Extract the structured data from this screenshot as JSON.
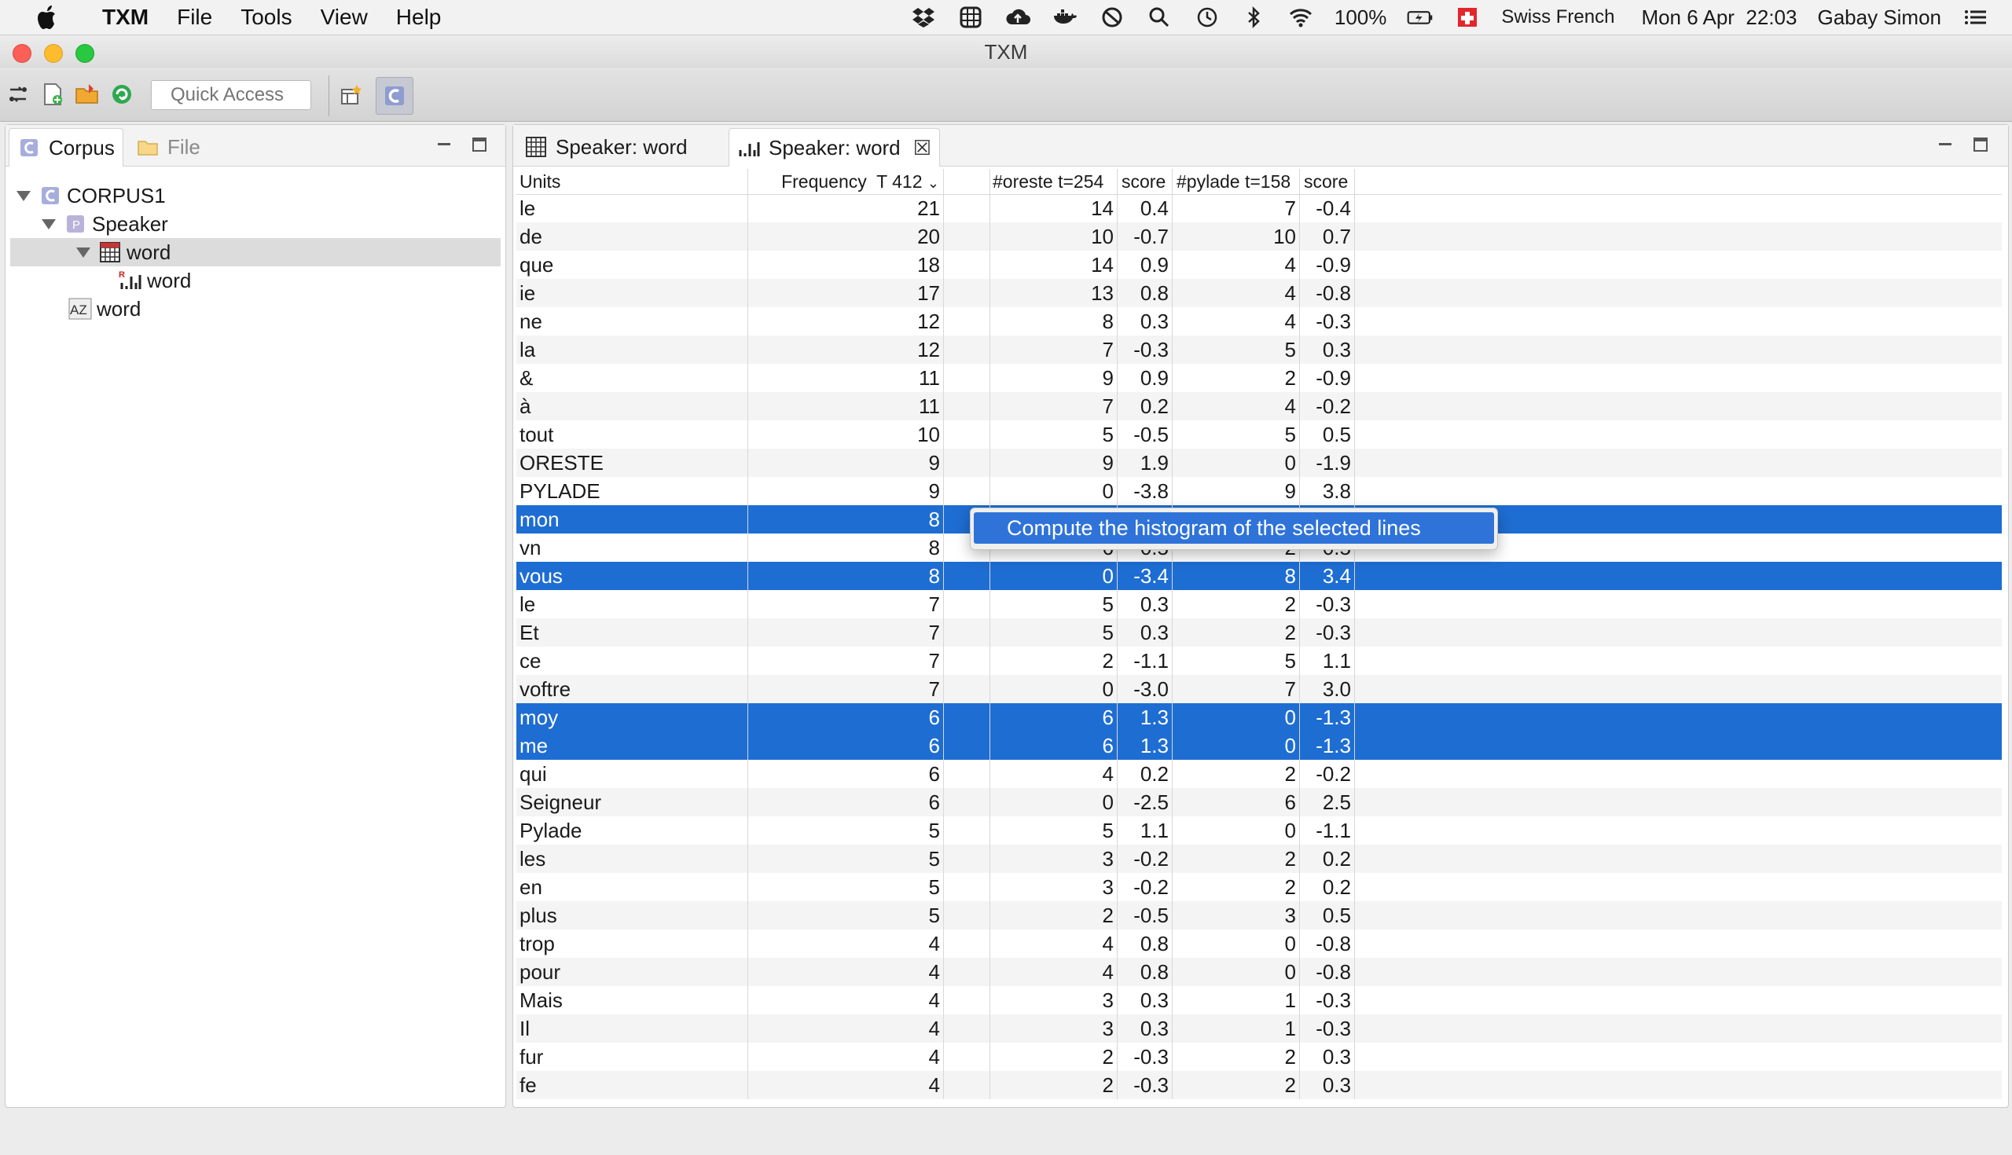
{
  "menubar": {
    "app": "TXM",
    "items": [
      "File",
      "Tools",
      "View",
      "Help"
    ],
    "status": {
      "battery": "100%",
      "input_source": "Swiss French",
      "datetime": "Mon 6 Apr  22:03",
      "user": "Gabay Simon"
    }
  },
  "window": {
    "title": "TXM"
  },
  "toolbar": {
    "quick_access_placeholder": "Quick Access"
  },
  "left_panel": {
    "tabs": [
      "Corpus",
      "File"
    ],
    "tree": {
      "corpus": "CORPUS1",
      "partition": "Speaker",
      "lexical_table": "word",
      "specificities": "word",
      "lexicon": "word"
    }
  },
  "editor": {
    "tabs": [
      "Speaker: word",
      "Speaker: word"
    ],
    "columns": {
      "units": "Units",
      "frequency": "Frequency  T 412",
      "col3": "#oreste t=254",
      "score1": "score",
      "col5": "#pylade t=158",
      "score2": "score"
    },
    "rows": [
      {
        "u": "le",
        "f": "21",
        "o": "14",
        "s1": "0.4",
        "p": "7",
        "s2": "-0.4"
      },
      {
        "u": "de",
        "f": "20",
        "o": "10",
        "s1": "-0.7",
        "p": "10",
        "s2": "0.7"
      },
      {
        "u": "que",
        "f": "18",
        "o": "14",
        "s1": "0.9",
        "p": "4",
        "s2": "-0.9"
      },
      {
        "u": "ie",
        "f": "17",
        "o": "13",
        "s1": "0.8",
        "p": "4",
        "s2": "-0.8"
      },
      {
        "u": "ne",
        "f": "12",
        "o": "8",
        "s1": "0.3",
        "p": "4",
        "s2": "-0.3"
      },
      {
        "u": "la",
        "f": "12",
        "o": "7",
        "s1": "-0.3",
        "p": "5",
        "s2": "0.3"
      },
      {
        "u": "&",
        "f": "11",
        "o": "9",
        "s1": "0.9",
        "p": "2",
        "s2": "-0.9"
      },
      {
        "u": "à",
        "f": "11",
        "o": "7",
        "s1": "0.2",
        "p": "4",
        "s2": "-0.2"
      },
      {
        "u": "tout",
        "f": "10",
        "o": "5",
        "s1": "-0.5",
        "p": "5",
        "s2": "0.5"
      },
      {
        "u": "ORESTE",
        "f": "9",
        "o": "9",
        "s1": "1.9",
        "p": "0",
        "s2": "-1.9"
      },
      {
        "u": "PYLADE",
        "f": "9",
        "o": "0",
        "s1": "-3.8",
        "p": "9",
        "s2": "3.8"
      },
      {
        "u": "mon",
        "f": "8",
        "o": "",
        "s1": "",
        "p": "",
        "s2": "",
        "sel": true
      },
      {
        "u": "vn",
        "f": "8",
        "o": "6",
        "s1": "0.5",
        "p": "2",
        "s2": "-0.5"
      },
      {
        "u": "vous",
        "f": "8",
        "o": "0",
        "s1": "-3.4",
        "p": "8",
        "s2": "3.4",
        "sel": true
      },
      {
        "u": "le",
        "f": "7",
        "o": "5",
        "s1": "0.3",
        "p": "2",
        "s2": "-0.3"
      },
      {
        "u": "Et",
        "f": "7",
        "o": "5",
        "s1": "0.3",
        "p": "2",
        "s2": "-0.3"
      },
      {
        "u": "ce",
        "f": "7",
        "o": "2",
        "s1": "-1.1",
        "p": "5",
        "s2": "1.1"
      },
      {
        "u": "voftre",
        "f": "7",
        "o": "0",
        "s1": "-3.0",
        "p": "7",
        "s2": "3.0"
      },
      {
        "u": "moy",
        "f": "6",
        "o": "6",
        "s1": "1.3",
        "p": "0",
        "s2": "-1.3",
        "sel": true
      },
      {
        "u": "me",
        "f": "6",
        "o": "6",
        "s1": "1.3",
        "p": "0",
        "s2": "-1.3",
        "sel": true
      },
      {
        "u": "qui",
        "f": "6",
        "o": "4",
        "s1": "0.2",
        "p": "2",
        "s2": "-0.2"
      },
      {
        "u": "Seigneur",
        "f": "6",
        "o": "0",
        "s1": "-2.5",
        "p": "6",
        "s2": "2.5"
      },
      {
        "u": "Pylade",
        "f": "5",
        "o": "5",
        "s1": "1.1",
        "p": "0",
        "s2": "-1.1"
      },
      {
        "u": "les",
        "f": "5",
        "o": "3",
        "s1": "-0.2",
        "p": "2",
        "s2": "0.2"
      },
      {
        "u": "en",
        "f": "5",
        "o": "3",
        "s1": "-0.2",
        "p": "2",
        "s2": "0.2"
      },
      {
        "u": "plus",
        "f": "5",
        "o": "2",
        "s1": "-0.5",
        "p": "3",
        "s2": "0.5"
      },
      {
        "u": "trop",
        "f": "4",
        "o": "4",
        "s1": "0.8",
        "p": "0",
        "s2": "-0.8"
      },
      {
        "u": "pour",
        "f": "4",
        "o": "4",
        "s1": "0.8",
        "p": "0",
        "s2": "-0.8"
      },
      {
        "u": "Mais",
        "f": "4",
        "o": "3",
        "s1": "0.3",
        "p": "1",
        "s2": "-0.3"
      },
      {
        "u": "Il",
        "f": "4",
        "o": "3",
        "s1": "0.3",
        "p": "1",
        "s2": "-0.3"
      },
      {
        "u": "fur",
        "f": "4",
        "o": "2",
        "s1": "-0.3",
        "p": "2",
        "s2": "0.3"
      },
      {
        "u": "fe",
        "f": "4",
        "o": "2",
        "s1": "-0.3",
        "p": "2",
        "s2": "0.3"
      }
    ]
  },
  "context_menu": {
    "item": "Compute the histogram of the selected lines"
  },
  "colors": {
    "selection": "#1e6dd2",
    "menu_highlight": "#2f73d9"
  }
}
